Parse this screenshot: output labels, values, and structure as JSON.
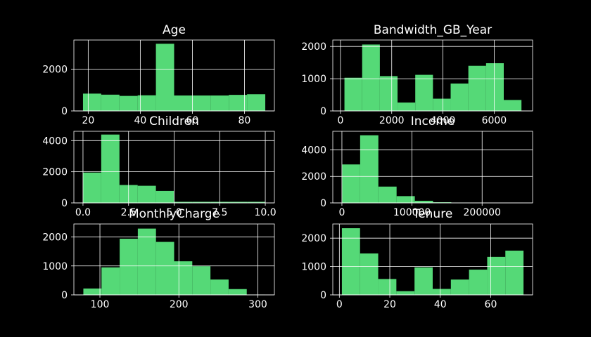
{
  "figure": {
    "background": "#000000",
    "bar_color": "#55d977",
    "axis_color": "#ffffff",
    "grid_color": "#ffffff"
  },
  "chart_data": [
    {
      "type": "bar",
      "title": "Age",
      "bin_edges": [
        18,
        25,
        32,
        39,
        46,
        53,
        60,
        67,
        74,
        81,
        88
      ],
      "values": [
        830,
        780,
        720,
        750,
        3220,
        740,
        740,
        740,
        770,
        800
      ],
      "xlim": [
        14.5,
        91.5
      ],
      "ylim": [
        0,
        3400
      ],
      "xticks": [
        20,
        40,
        60,
        80
      ],
      "xtick_labels": [
        "20",
        "40",
        "60",
        "80"
      ],
      "yticks": [
        0,
        2000
      ],
      "ytick_labels": [
        "0",
        "2000"
      ],
      "grid": true
    },
    {
      "type": "bar",
      "title": "Bandwidth_GB_Year",
      "bin_edges": [
        155,
        846,
        1537,
        2228,
        2919,
        3610,
        4301,
        4992,
        5683,
        6374,
        7065
      ],
      "values": [
        1030,
        2060,
        1080,
        260,
        1120,
        380,
        850,
        1400,
        1480,
        340
      ],
      "xlim": [
        -300,
        7500
      ],
      "ylim": [
        0,
        2200
      ],
      "xticks": [
        0,
        2000,
        4000,
        6000
      ],
      "xtick_labels": [
        "0",
        "2000",
        "4000",
        "6000"
      ],
      "yticks": [
        0,
        1000,
        2000
      ],
      "ytick_labels": [
        "0",
        "1000",
        "2000"
      ],
      "grid": true
    },
    {
      "type": "bar",
      "title": "Children",
      "bin_edges": [
        0,
        1,
        2,
        3,
        4,
        5,
        6,
        7,
        8,
        9,
        10
      ],
      "values": [
        1950,
        4390,
        1150,
        1100,
        770,
        70,
        70,
        70,
        70,
        70
      ],
      "xlim": [
        -0.5,
        10.5
      ],
      "ylim": [
        0,
        4600
      ],
      "xticks": [
        0,
        2.5,
        5,
        7.5,
        10
      ],
      "xtick_labels": [
        "0.0",
        "2.5",
        "5.0",
        "7.5",
        "10.0"
      ],
      "yticks": [
        0,
        2000,
        4000
      ],
      "ytick_labels": [
        "0",
        "2000",
        "4000"
      ],
      "grid": true
    },
    {
      "type": "bar",
      "title": "Income",
      "bin_edges": [
        350,
        26000,
        52000,
        78000,
        104000,
        130000,
        156000,
        182000,
        208000,
        234000,
        259000
      ],
      "values": [
        2900,
        5100,
        1230,
        510,
        160,
        50,
        20,
        10,
        5,
        2
      ],
      "xlim": [
        -13000,
        272000
      ],
      "ylim": [
        0,
        5400
      ],
      "xticks": [
        0,
        100000,
        200000
      ],
      "xtick_labels": [
        "0",
        "100000",
        "200000"
      ],
      "yticks": [
        0,
        2000,
        4000
      ],
      "ytick_labels": [
        "0",
        "2000",
        "4000"
      ],
      "grid": true
    },
    {
      "type": "bar",
      "title": "MonthlyCharge",
      "bin_edges": [
        79,
        102,
        125,
        148,
        171,
        194,
        217,
        240,
        263,
        286,
        309
      ],
      "values": [
        220,
        950,
        1940,
        2290,
        1830,
        1160,
        990,
        530,
        200,
        10
      ],
      "xlim": [
        67,
        321
      ],
      "ylim": [
        0,
        2450
      ],
      "xticks": [
        100,
        200,
        300
      ],
      "xtick_labels": [
        "100",
        "200",
        "300"
      ],
      "yticks": [
        0,
        1000,
        2000
      ],
      "ytick_labels": [
        "0",
        "1000",
        "2000"
      ],
      "grid": true
    },
    {
      "type": "bar",
      "title": "Tenure",
      "bin_edges": [
        1,
        8.2,
        15.4,
        22.6,
        29.8,
        37,
        44.2,
        51.4,
        58.6,
        65.8,
        73
      ],
      "values": [
        2350,
        1460,
        560,
        130,
        970,
        210,
        540,
        890,
        1340,
        1560
      ],
      "xlim": [
        -2.6,
        76.6
      ],
      "ylim": [
        0,
        2500
      ],
      "xticks": [
        0,
        20,
        40,
        60
      ],
      "xtick_labels": [
        "0",
        "20",
        "40",
        "60"
      ],
      "yticks": [
        0,
        1000,
        2000
      ],
      "ytick_labels": [
        "0",
        "1000",
        "2000"
      ],
      "grid": true
    }
  ]
}
